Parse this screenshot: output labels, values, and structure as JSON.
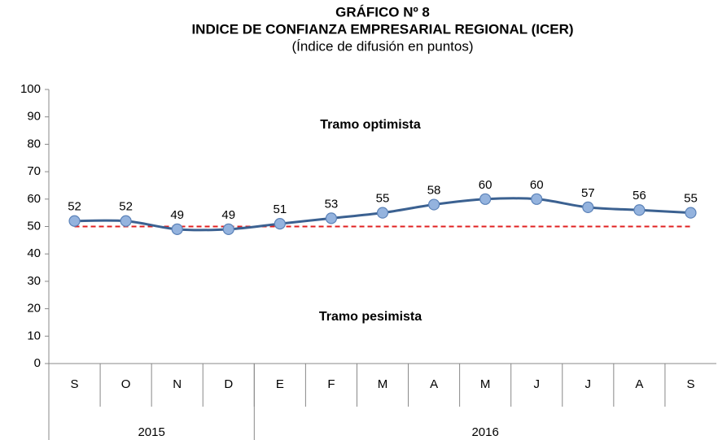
{
  "chart_data": {
    "type": "line",
    "title": "GRÁFICO Nº 8",
    "subtitle": "INDICE DE CONFIANZA EMPRESARIAL REGIONAL (ICER)",
    "note": "(Índice de difusión en puntos)",
    "categories": [
      "S",
      "O",
      "N",
      "D",
      "E",
      "F",
      "M",
      "A",
      "M",
      "J",
      "J",
      "A",
      "S"
    ],
    "groups": [
      {
        "label": "2015",
        "span": 4
      },
      {
        "label": "2016",
        "span": 9
      }
    ],
    "series": [
      {
        "name": "ICER",
        "color": "#3b6191",
        "marker_color": "#94b3de",
        "values": [
          52,
          52,
          49,
          49,
          51,
          53,
          55,
          58,
          60,
          60,
          57,
          56,
          55
        ]
      }
    ],
    "threshold": {
      "value": 50,
      "color": "#e02020"
    },
    "annotations": [
      {
        "text": "Tramo optimista",
        "y": 87
      },
      {
        "text": "Tramo pesimista",
        "y": 17
      }
    ],
    "ylim": [
      0,
      100
    ],
    "yticks": [
      0,
      10,
      20,
      30,
      40,
      50,
      60,
      70,
      80,
      90,
      100
    ],
    "grid": false
  }
}
